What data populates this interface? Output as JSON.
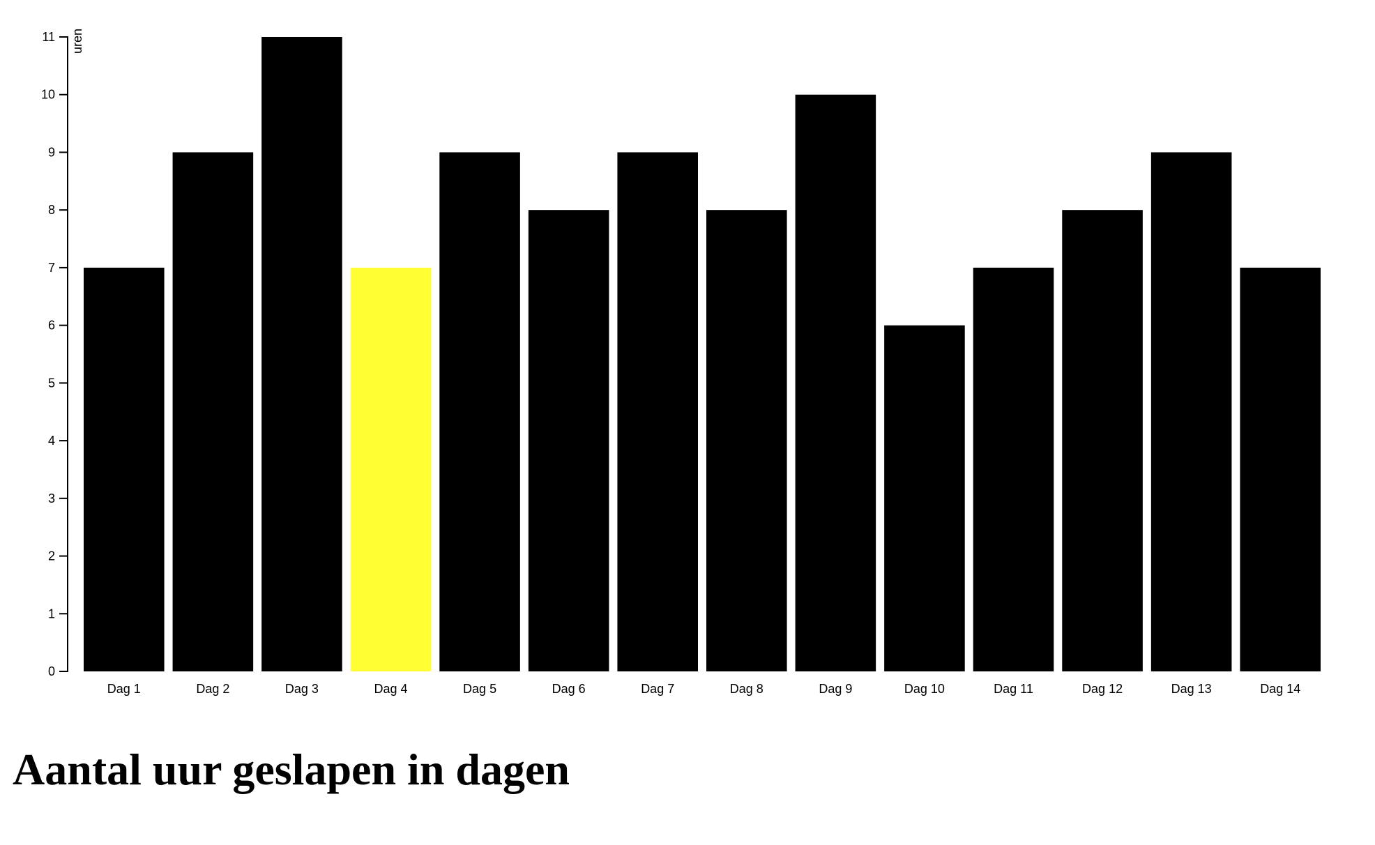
{
  "page": {
    "title": "Aantal uur geslapen in dagen"
  },
  "colors": {
    "bar": "#000000",
    "highlight": "#ffff33",
    "axis": "#000000"
  },
  "chart_data": {
    "type": "bar",
    "title": "Aantal uur geslapen in dagen",
    "xlabel": "",
    "ylabel": "uren",
    "categories": [
      "Dag 1",
      "Dag 2",
      "Dag 3",
      "Dag 4",
      "Dag 5",
      "Dag 6",
      "Dag 7",
      "Dag 8",
      "Dag 9",
      "Dag 10",
      "Dag 11",
      "Dag 12",
      "Dag 13",
      "Dag 14"
    ],
    "values": [
      7,
      9,
      11,
      7,
      9,
      8,
      9,
      8,
      10,
      6,
      7,
      8,
      9,
      7
    ],
    "highlighted_category": "Dag 4",
    "ylim": [
      0,
      11
    ],
    "yticks": [
      0,
      1,
      2,
      3,
      4,
      5,
      6,
      7,
      8,
      9,
      10,
      11
    ],
    "grid": false,
    "legend": "none"
  }
}
